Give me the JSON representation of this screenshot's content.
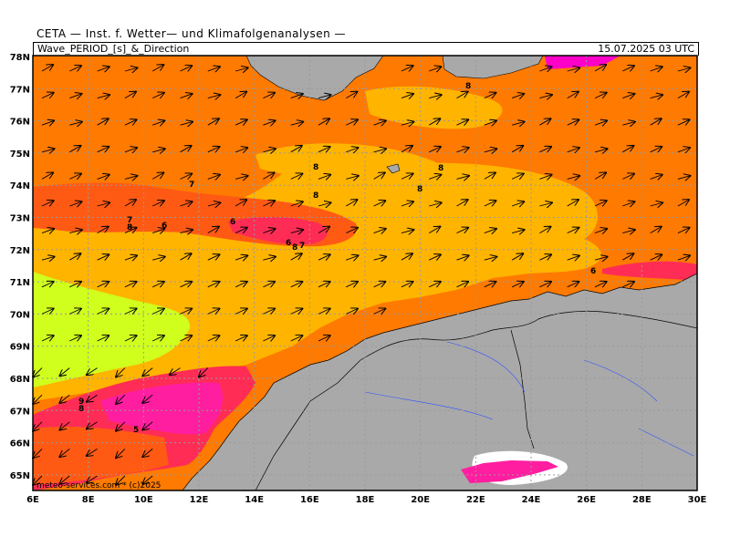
{
  "header": {
    "title": "CETA  —  Inst. f. Wetter—  und  Klimafolgenanalysen  —"
  },
  "subheader": {
    "variable": "Wave_PERIOD_[s]_&_Direction",
    "timestamp": "15.07.2025  03  UTC"
  },
  "credit": "meteo-services.com  *  (c)2025",
  "axes": {
    "lon_labels": [
      "6E",
      "8E",
      "10E",
      "12E",
      "14E",
      "16E",
      "18E",
      "20E",
      "22E",
      "24E",
      "26E",
      "28E",
      "30E"
    ],
    "lat_labels": [
      "78N",
      "77N",
      "76N",
      "75N",
      "74N",
      "73N",
      "72N",
      "71N",
      "70N",
      "69N",
      "68N",
      "67N",
      "66N",
      "65N"
    ]
  },
  "colors": {
    "land": "#a9a9a9",
    "period_9": "#ff7a00",
    "period_8": "#ffb400",
    "period_7": "#ff5a14",
    "period_6": "#ff2d55",
    "period_5": "#ff1ea0",
    "period_high": "#d0ff1e",
    "ice_magenta": "#ff00c8",
    "no_data": "#ffffff"
  },
  "contour_labels": [
    "8",
    "8",
    "8",
    "8",
    "8",
    "7",
    "7",
    "8",
    "6",
    "6",
    "6",
    "8",
    "7",
    "6",
    "9",
    "5",
    "8"
  ],
  "legend": []
}
